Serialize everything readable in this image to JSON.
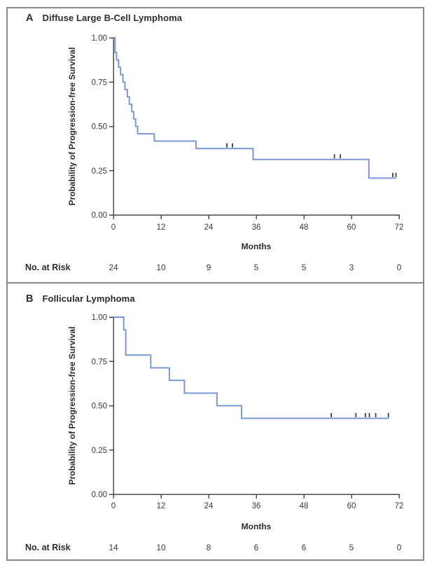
{
  "figure": {
    "curve_color": "#7b99d4",
    "censor_color": "#3d3d3d",
    "axis_color": "#4b4b4b",
    "text_color": "#3b3b3b",
    "strong_text_color": "#2d2d2d",
    "border_color": "#8a8a8a"
  },
  "chart_data": [
    {
      "type": "line",
      "subtype": "kaplan-meier-step",
      "panel": "A",
      "title": "Diffuse Large B-Cell Lymphoma",
      "xlabel": "Months",
      "ylabel": "Probability of Progression-free Survival",
      "xlim": [
        0,
        72
      ],
      "ylim": [
        0.0,
        1.0
      ],
      "xticks": [
        0,
        12,
        24,
        36,
        48,
        60,
        72
      ],
      "yticks": [
        0.0,
        0.25,
        0.5,
        0.75,
        1.0
      ],
      "grid": false,
      "legend": "none",
      "steps": [
        [
          0,
          1.0
        ],
        [
          0.4,
          0.917
        ],
        [
          0.8,
          0.875
        ],
        [
          1.3,
          0.833
        ],
        [
          1.8,
          0.792
        ],
        [
          2.4,
          0.75
        ],
        [
          2.9,
          0.708
        ],
        [
          3.5,
          0.667
        ],
        [
          4.0,
          0.625
        ],
        [
          4.6,
          0.583
        ],
        [
          5.1,
          0.542
        ],
        [
          5.6,
          0.5
        ],
        [
          6.1,
          0.458
        ],
        [
          10.3,
          0.417
        ],
        [
          20.8,
          0.375
        ],
        [
          35.2,
          0.313
        ],
        [
          64.4,
          0.208
        ],
        [
          71.3,
          0.208
        ]
      ],
      "censor_marks": [
        [
          28.6,
          0.375
        ],
        [
          30.0,
          0.375
        ],
        [
          55.7,
          0.313
        ],
        [
          57.2,
          0.313
        ],
        [
          70.4,
          0.208
        ],
        [
          71.2,
          0.208
        ]
      ],
      "risk_label": "No. at Risk",
      "risk_counts": [
        24,
        10,
        9,
        5,
        5,
        3,
        0
      ]
    },
    {
      "type": "line",
      "subtype": "kaplan-meier-step",
      "panel": "B",
      "title": "Follicular Lymphoma",
      "xlabel": "Months",
      "ylabel": "Probability of Progression-free Survival",
      "xlim": [
        0,
        72
      ],
      "ylim": [
        0.0,
        1.0
      ],
      "xticks": [
        0,
        12,
        24,
        36,
        48,
        60,
        72
      ],
      "yticks": [
        0.0,
        0.25,
        0.5,
        0.75,
        1.0
      ],
      "grid": false,
      "legend": "none",
      "steps": [
        [
          0,
          1.0
        ],
        [
          2.6,
          0.929
        ],
        [
          3.1,
          0.786
        ],
        [
          9.4,
          0.714
        ],
        [
          14.1,
          0.643
        ],
        [
          17.9,
          0.571
        ],
        [
          26.1,
          0.5
        ],
        [
          32.3,
          0.429
        ],
        [
          69.5,
          0.429
        ]
      ],
      "censor_marks": [
        [
          54.9,
          0.429
        ],
        [
          61.1,
          0.429
        ],
        [
          63.5,
          0.429
        ],
        [
          64.5,
          0.429
        ],
        [
          66.1,
          0.429
        ],
        [
          69.3,
          0.429
        ]
      ],
      "risk_label": "No. at Risk",
      "risk_counts": [
        14,
        10,
        8,
        6,
        6,
        5,
        0
      ]
    }
  ]
}
